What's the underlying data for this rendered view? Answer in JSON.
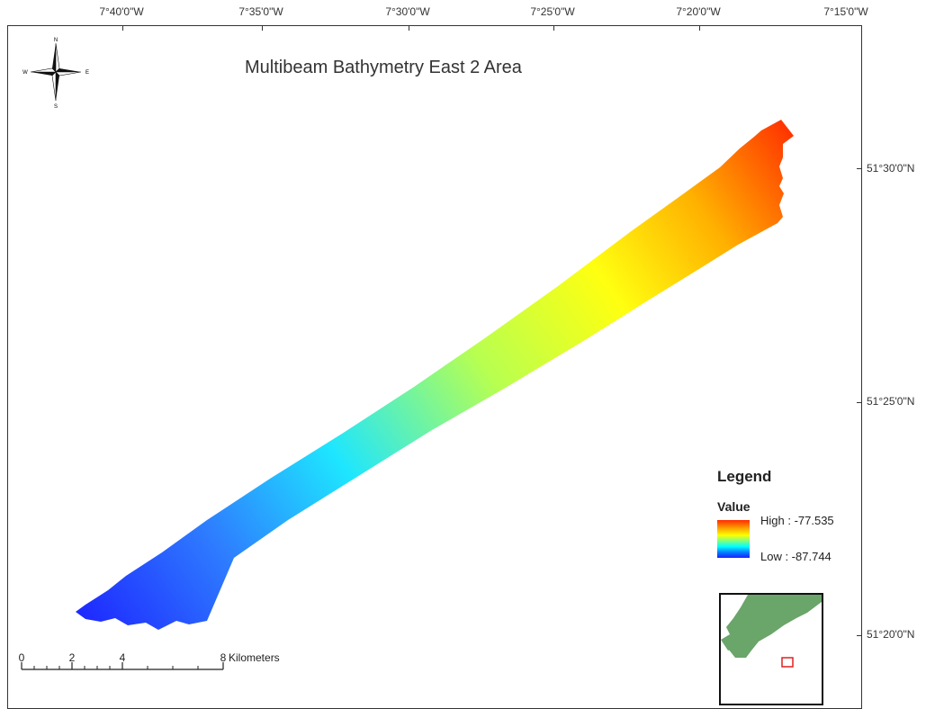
{
  "map": {
    "title": "Multibeam Bathymetry East 2 Area",
    "longitude_labels": [
      "7°40'0\"W",
      "7°35'0\"W",
      "7°30'0\"W",
      "7°25'0\"W",
      "7°20'0\"W",
      "7°15'0\"W"
    ],
    "latitude_labels": [
      "51°30'0\"N",
      "51°25'0\"N",
      "51°20'0\"N"
    ]
  },
  "north_arrow": {
    "n": "N",
    "s": "S",
    "e": "E",
    "w": "W"
  },
  "legend": {
    "title": "Legend",
    "subtitle": "Value",
    "high_label": "High : -77.535",
    "low_label": "Low : -87.744",
    "ramp_colors": [
      "#ff2a00",
      "#ff9a00",
      "#ffff00",
      "#00ffff",
      "#1e1eff"
    ]
  },
  "scale_bar": {
    "ticks": [
      "0",
      "2",
      "4",
      "8"
    ],
    "unit": "Kilometers"
  },
  "inset": {
    "land_color": "#6aa56a",
    "extent_color": "#e02020"
  }
}
